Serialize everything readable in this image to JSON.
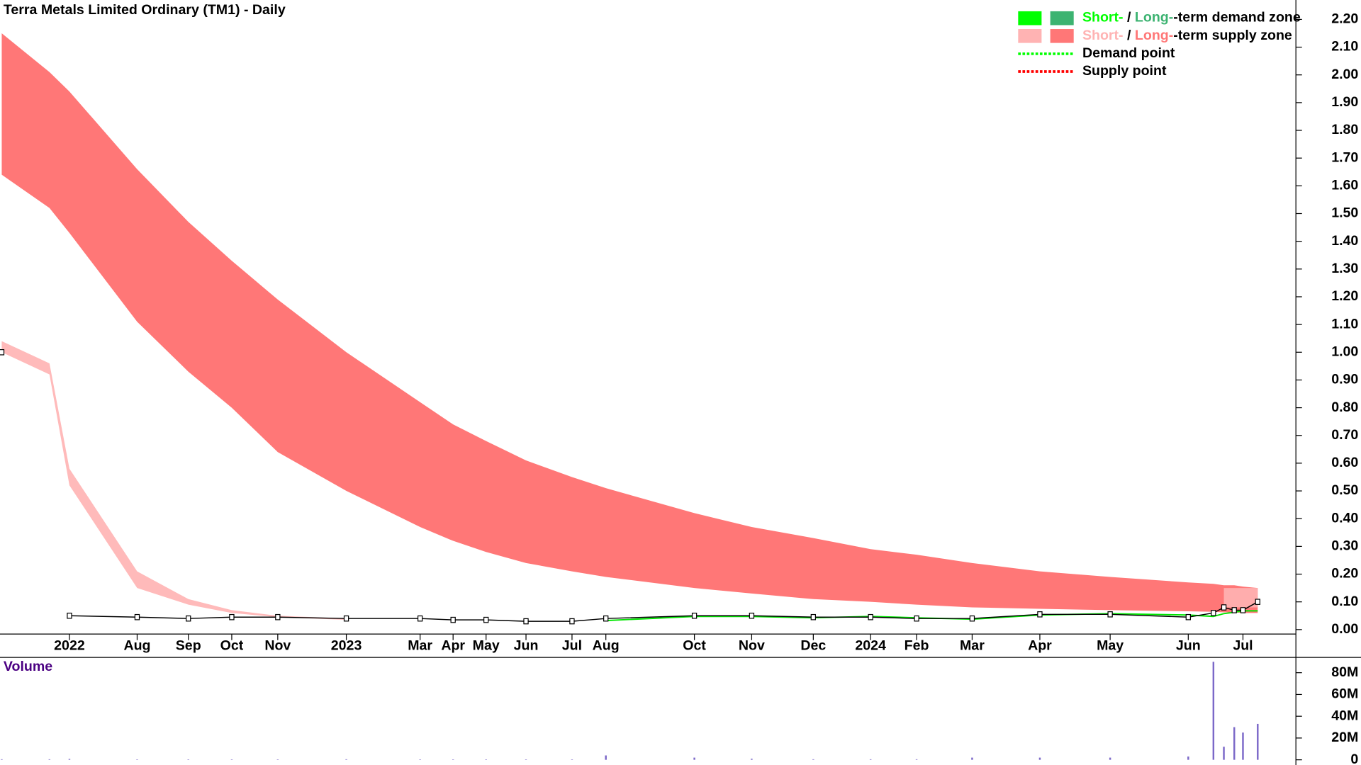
{
  "chart_data": [
    {
      "type": "zones",
      "title": "Terra Metals Limited Ordinary (TM1) - Daily",
      "categories": [
        null,
        null,
        "2022",
        "Aug",
        "Sep",
        "Oct",
        "Nov",
        "2023",
        "Mar",
        "Apr",
        "May",
        "Jun",
        "Jul",
        "Aug",
        "Oct",
        "Nov",
        "Dec",
        "2024",
        "Feb",
        "Mar",
        "Apr",
        "May",
        "Jun",
        null,
        null,
        null,
        "Jul",
        null
      ],
      "zones": [
        {
          "color": "#ff7777",
          "upper": [
            2.15,
            2.01,
            1.94,
            1.66,
            1.47,
            1.33,
            1.19,
            1.0,
            0.82,
            0.74,
            0.68,
            0.61,
            0.55,
            0.51,
            0.42,
            0.37,
            0.33,
            0.29,
            0.27,
            0.24,
            0.21,
            0.19,
            0.17,
            0.165,
            0.16,
            0.16,
            0.155,
            0.15
          ],
          "lower": [
            1.64,
            1.52,
            1.43,
            1.11,
            0.93,
            0.8,
            0.64,
            0.5,
            0.37,
            0.32,
            0.28,
            0.24,
            0.21,
            0.19,
            0.15,
            0.13,
            0.11,
            0.1,
            0.09,
            0.08,
            0.075,
            0.07,
            0.066,
            0.064,
            0.062,
            0.062,
            0.06,
            0.06
          ]
        },
        {
          "color": "#ffb3b3",
          "upper": [
            1.04,
            0.96,
            0.58,
            0.21,
            0.11,
            0.07,
            0.05,
            0.04,
            null,
            null,
            null,
            null,
            null,
            null,
            null,
            null,
            null,
            null,
            null,
            null,
            null,
            null,
            null,
            null,
            0.15,
            0.15,
            0.15,
            0.15
          ],
          "lower": [
            1.0,
            0.92,
            0.52,
            0.15,
            0.09,
            0.06,
            0.045,
            0.035,
            null,
            null,
            null,
            null,
            null,
            null,
            null,
            null,
            null,
            null,
            null,
            null,
            null,
            null,
            null,
            null,
            0.08,
            0.08,
            0.08,
            0.08
          ]
        },
        {
          "color": "#00e600",
          "upper": [
            null,
            null,
            null,
            null,
            null,
            null,
            null,
            null,
            null,
            null,
            null,
            null,
            null,
            0.035,
            0.05,
            0.05,
            0.045,
            0.05,
            0.045,
            0.04,
            0.055,
            0.06,
            0.055,
            0.05,
            0.06,
            0.065,
            0.07,
            0.07
          ],
          "lower": [
            null,
            null,
            null,
            null,
            null,
            null,
            null,
            null,
            null,
            null,
            null,
            null,
            null,
            0.03,
            0.045,
            0.045,
            0.04,
            0.045,
            0.04,
            0.035,
            0.05,
            0.055,
            0.05,
            0.045,
            0.055,
            0.06,
            0.065,
            0.065
          ]
        }
      ],
      "series": [
        {
          "color": "#000000",
          "values": [
            1.0,
            null,
            0.05,
            0.045,
            0.04,
            0.045,
            0.045,
            0.04,
            0.04,
            0.035,
            0.035,
            0.03,
            0.03,
            0.04,
            0.05,
            0.05,
            0.045,
            0.045,
            0.04,
            0.04,
            0.055,
            0.055,
            0.045,
            0.06,
            0.08,
            0.07,
            0.07,
            0.1
          ]
        }
      ],
      "ylim": [
        -0.016,
        2.27
      ],
      "yticks": [
        {
          "value": 0,
          "label": "0.00"
        },
        {
          "value": 0.1,
          "label": "0.10"
        },
        {
          "value": 0.2,
          "label": "0.20"
        },
        {
          "value": 0.3,
          "label": "0.30"
        },
        {
          "value": 0.4,
          "label": "0.40"
        },
        {
          "value": 0.5,
          "label": "0.50"
        },
        {
          "value": 0.6,
          "label": "0.60"
        },
        {
          "value": 0.7,
          "label": "0.70"
        },
        {
          "value": 0.8,
          "label": "0.80"
        },
        {
          "value": 0.9,
          "label": "0.90"
        },
        {
          "value": 1,
          "label": "1.00"
        },
        {
          "value": 1.1,
          "label": "1.10"
        },
        {
          "value": 1.2,
          "label": "1.20"
        },
        {
          "value": 1.3,
          "label": "1.30"
        },
        {
          "value": 1.4,
          "label": "1.40"
        },
        {
          "value": 1.5,
          "label": "1.50"
        },
        {
          "value": 1.6,
          "label": "1.60"
        },
        {
          "value": 1.7,
          "label": "1.70"
        },
        {
          "value": 1.8,
          "label": "1.80"
        },
        {
          "value": 1.9,
          "label": "1.90"
        },
        {
          "value": 2,
          "label": "2.00"
        },
        {
          "value": 2.1,
          "label": "2.10"
        },
        {
          "value": 2.2,
          "label": "2.20"
        }
      ],
      "legend": [
        {
          "labels": [
            "Short-",
            " / ",
            "Long-",
            "-term demand zone"
          ],
          "colors": [
            "#00ff00",
            "#3cb371"
          ],
          "dotted": false
        },
        {
          "labels": [
            "Short-",
            " / ",
            "Long-",
            "-term supply zone"
          ],
          "colors": [
            "#ffb3b3",
            "#ff7777"
          ],
          "dotted": false
        },
        {
          "labels": [
            "Demand point"
          ],
          "colors": [
            "#00ff00"
          ],
          "dotted": true
        },
        {
          "labels": [
            "Supply point"
          ],
          "colors": [
            "#ff0000"
          ],
          "dotted": true
        }
      ]
    },
    {
      "type": "bar",
      "title": "Volume",
      "color": "#7b68c8",
      "values": [
        500000,
        500000,
        800000,
        300000,
        300000,
        300000,
        300000,
        500000,
        200000,
        200000,
        200000,
        300000,
        200000,
        4000000,
        2000000,
        1000000,
        500000,
        500000,
        500000,
        2000000,
        2000000,
        2000000,
        3000000,
        90000000,
        12000000,
        30000000,
        25000000,
        33000000
      ],
      "ylim": [
        0,
        94000000
      ],
      "yticks": [
        0,
        {
          "value": 20000000,
          "label": "20M"
        },
        {
          "value": 40000000,
          "label": "40M"
        },
        {
          "value": 60000000,
          "label": "60M"
        },
        {
          "value": 80000000,
          "label": "80M"
        }
      ]
    }
  ]
}
